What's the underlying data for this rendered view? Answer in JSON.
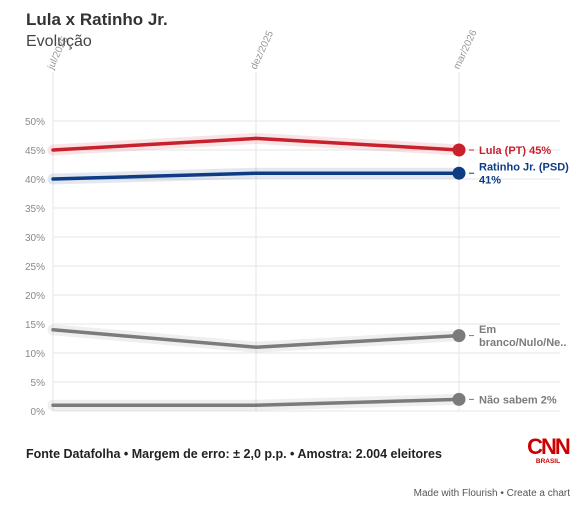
{
  "header": {
    "title": "Lula x Ratinho Jr.",
    "subtitle": "Evolução"
  },
  "chart_data": {
    "type": "line",
    "title": "Lula x Ratinho Jr.",
    "subtitle": "Evolução",
    "x": [
      "jul/2025",
      "dez/2025",
      "mar/2026"
    ],
    "ylim": [
      0,
      50
    ],
    "yticks": [
      0,
      5,
      10,
      15,
      20,
      25,
      30,
      35,
      40,
      45,
      50
    ],
    "ytick_labels": [
      "0%",
      "5%",
      "10%",
      "15%",
      "20%",
      "25%",
      "30%",
      "35%",
      "40%",
      "45%",
      "50%"
    ],
    "grid": true,
    "legend": "end-labels",
    "series": [
      {
        "name": "Lula (PT)",
        "label_lines": [
          "Lula (PT) 45%"
        ],
        "values": [
          45,
          47,
          45
        ],
        "color": "#c8202d"
      },
      {
        "name": "Ratinho Jr. (PSD)",
        "label_lines": [
          "Ratinho Jr. (PSD)",
          "41%"
        ],
        "values": [
          40,
          41,
          41
        ],
        "color": "#0d3c85"
      },
      {
        "name": "Em branco/Nulo/Ne..",
        "label_lines": [
          "Em",
          "branco/Nulo/Ne.."
        ],
        "values": [
          14,
          11,
          13
        ],
        "color": "#7b7b7b"
      },
      {
        "name": "Não sabem",
        "label_lines": [
          "Não sabem 2%"
        ],
        "values": [
          1,
          1,
          2
        ],
        "color": "#7b7b7b"
      }
    ]
  },
  "footer": {
    "source": "Fonte Datafolha • Margem de erro: ± 2,0 p.p. • Amostra: 2.004 eleitores"
  },
  "logo": {
    "main": "CNN",
    "sub": "BRASIL"
  },
  "credit": {
    "made_with": "Made with Flourish",
    "separator": " • ",
    "create": "Create a chart"
  }
}
